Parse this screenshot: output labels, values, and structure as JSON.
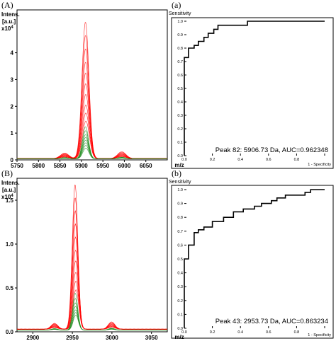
{
  "chart_data": [
    {
      "panel_label": "(A)",
      "type": "line",
      "ylabel_line1": "Intens.",
      "ylabel_line2": "[a.u.]",
      "ylabel_scale_base": "x10",
      "ylabel_scale_exp": "4",
      "xlabel": "m/z",
      "xlim": [
        5750,
        6100
      ],
      "ylim": [
        0,
        5.6
      ],
      "x_ticks": [
        "5750",
        "5800",
        "5850",
        "5900",
        "5950",
        "6000",
        "6050"
      ],
      "y_ticks": [
        "0",
        "1",
        "2",
        "3",
        "4"
      ],
      "series": [
        {
          "color": "#ff0000",
          "peak_x": 5910,
          "peak_heights": [
            5.1,
            4.6,
            4.1,
            3.6,
            3.2,
            2.8,
            2.4,
            2.0,
            1.7,
            1.4
          ],
          "width": 8,
          "baseline": 0.05
        },
        {
          "color": "#1e8c1e",
          "peak_x": 5910,
          "peak_heights": [
            1.2,
            1.05,
            0.9,
            0.8,
            0.7,
            0.6,
            0.5,
            0.4
          ],
          "width": 7,
          "baseline": 0.04
        }
      ]
    },
    {
      "panel_label": "(a)",
      "type": "line",
      "ylabel": "Sensitivity",
      "xlabel": "1 - Specificity",
      "xlim": [
        0,
        1
      ],
      "ylim": [
        0,
        1
      ],
      "x_ticks": [
        "0.0",
        "0.2",
        "0.4",
        "0.6",
        "0.8",
        "1.0"
      ],
      "y_ticks": [
        "0.0",
        "0.1",
        "0.2",
        "0.3",
        "0.4",
        "0.5",
        "0.6",
        "0.7",
        "0.8",
        "0.9",
        "1.0"
      ],
      "annotation": "Peak 82: 5906.73 Da, AUC=0.962348",
      "roc": [
        [
          0,
          0
        ],
        [
          0,
          0.73
        ],
        [
          0.03,
          0.73
        ],
        [
          0.03,
          0.8
        ],
        [
          0.07,
          0.8
        ],
        [
          0.07,
          0.82
        ],
        [
          0.1,
          0.82
        ],
        [
          0.1,
          0.85
        ],
        [
          0.14,
          0.85
        ],
        [
          0.14,
          0.88
        ],
        [
          0.17,
          0.88
        ],
        [
          0.17,
          0.91
        ],
        [
          0.21,
          0.91
        ],
        [
          0.21,
          0.94
        ],
        [
          0.24,
          0.94
        ],
        [
          0.24,
          0.97
        ],
        [
          0.45,
          0.97
        ],
        [
          0.45,
          1.0
        ],
        [
          1.0,
          1.0
        ]
      ]
    },
    {
      "panel_label": "(B)",
      "type": "line",
      "ylabel_line1": "Intens.",
      "ylabel_line2": "[a.u.]",
      "ylabel_scale_base": "x10",
      "ylabel_scale_exp": "4",
      "xlabel": "m/z",
      "xlim": [
        2880,
        3070
      ],
      "ylim": [
        0,
        1.75
      ],
      "x_ticks": [
        "2900",
        "2950",
        "3000",
        "3050"
      ],
      "y_ticks": [
        "0.0",
        "0.5",
        "1.0",
        "1.5"
      ],
      "series": [
        {
          "color": "#ff0000",
          "peak_x": 2954,
          "peak_heights": [
            1.65,
            1.5,
            1.35,
            1.2,
            1.05,
            0.9,
            0.78,
            0.65,
            0.55,
            0.45
          ],
          "width": 3.5,
          "baseline": 0.03
        },
        {
          "color": "#1e8c1e",
          "peak_x": 2954,
          "peak_heights": [
            0.42,
            0.36,
            0.31,
            0.27,
            0.23,
            0.2,
            0.17
          ],
          "width": 3.2,
          "baseline": 0.02
        }
      ]
    },
    {
      "panel_label": "(b)",
      "type": "line",
      "ylabel": "Sensitivity",
      "xlabel": "1 - Specificity",
      "xlim": [
        0,
        1
      ],
      "ylim": [
        0,
        1
      ],
      "x_ticks": [
        "0.0",
        "0.2",
        "0.4",
        "0.6",
        "0.8",
        "1.0"
      ],
      "y_ticks": [
        "0.0",
        "0.1",
        "0.2",
        "0.3",
        "0.4",
        "0.5",
        "0.6",
        "0.7",
        "0.8",
        "0.9",
        "1.0"
      ],
      "annotation": "Peak 43: 2953.73 Da, AUC=0.863234",
      "roc": [
        [
          0,
          0
        ],
        [
          0,
          0.5
        ],
        [
          0.03,
          0.5
        ],
        [
          0.03,
          0.6
        ],
        [
          0.07,
          0.6
        ],
        [
          0.07,
          0.69
        ],
        [
          0.1,
          0.69
        ],
        [
          0.1,
          0.71
        ],
        [
          0.14,
          0.71
        ],
        [
          0.14,
          0.73
        ],
        [
          0.2,
          0.73
        ],
        [
          0.2,
          0.77
        ],
        [
          0.28,
          0.77
        ],
        [
          0.28,
          0.8
        ],
        [
          0.35,
          0.8
        ],
        [
          0.35,
          0.84
        ],
        [
          0.42,
          0.84
        ],
        [
          0.42,
          0.86
        ],
        [
          0.5,
          0.86
        ],
        [
          0.5,
          0.88
        ],
        [
          0.55,
          0.88
        ],
        [
          0.55,
          0.9
        ],
        [
          0.62,
          0.9
        ],
        [
          0.62,
          0.92
        ],
        [
          0.66,
          0.92
        ],
        [
          0.66,
          0.94
        ],
        [
          0.72,
          0.94
        ],
        [
          0.72,
          0.96
        ],
        [
          0.86,
          0.96
        ],
        [
          0.86,
          0.98
        ],
        [
          0.9,
          0.98
        ],
        [
          0.9,
          1.0
        ],
        [
          1.0,
          1.0
        ]
      ]
    }
  ]
}
